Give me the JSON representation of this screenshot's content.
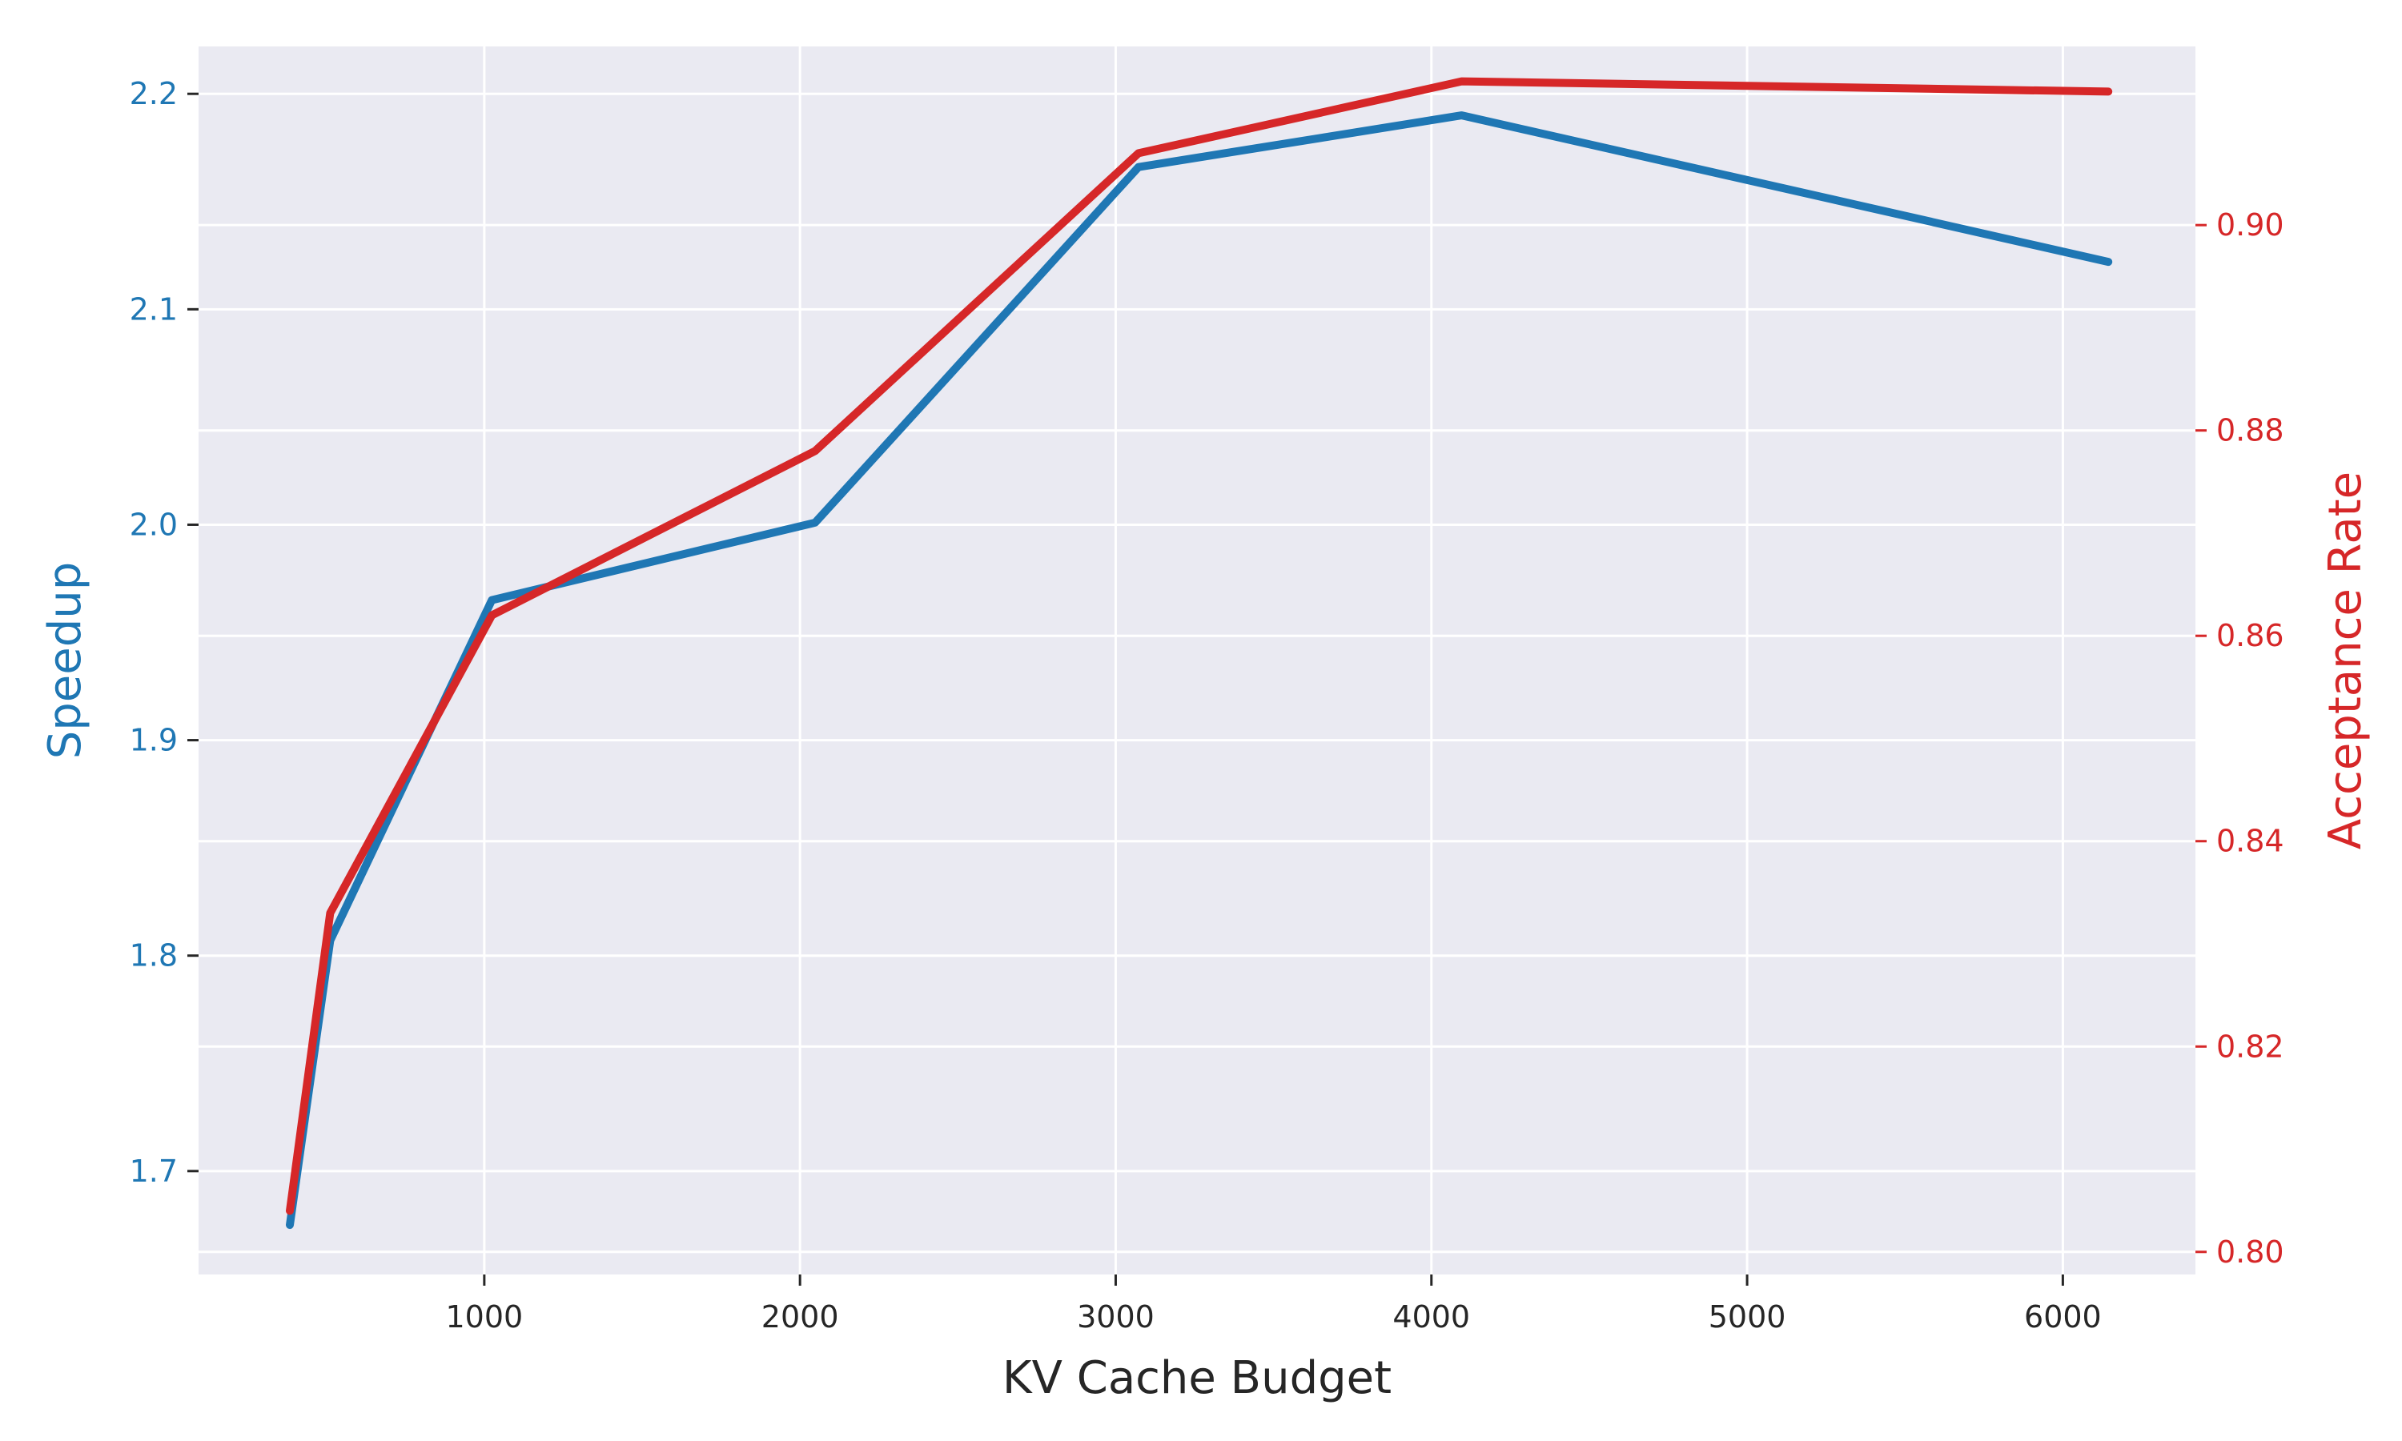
{
  "chart_data": {
    "type": "line",
    "xlabel": "KV Cache Budget",
    "ylabel_left": "Speedup",
    "ylabel_right": "Acceptance Rate",
    "grid": true,
    "xlim": [
      95,
      6420
    ],
    "ylim_left": [
      1.652,
      2.222
    ],
    "ylim_right": [
      0.7978,
      0.9174
    ],
    "x_ticks": [
      1000,
      2000,
      3000,
      4000,
      5000,
      6000
    ],
    "y_left_ticks": [
      1.7,
      1.8,
      1.9,
      2.0,
      2.1,
      2.2
    ],
    "y_right_ticks": [
      0.8,
      0.82,
      0.84,
      0.86,
      0.88,
      0.9
    ],
    "y_left_tick_labels": [
      "1.7",
      "1.8",
      "1.9",
      "2.0",
      "2.1",
      "2.2"
    ],
    "y_right_tick_labels": [
      "0.80",
      "0.82",
      "0.84",
      "0.86",
      "0.88",
      "0.90"
    ],
    "series": [
      {
        "axis": "left",
        "color": "#1f77b4",
        "x": [
          384,
          512,
          1024,
          2048,
          3072,
          4096,
          6144
        ],
        "values": [
          1.675,
          1.807,
          1.965,
          2.001,
          2.166,
          2.19,
          2.122
        ]
      },
      {
        "axis": "right",
        "color": "#d62728",
        "x": [
          384,
          512,
          1024,
          2048,
          3072,
          4096,
          6144
        ],
        "values": [
          0.804,
          0.833,
          0.862,
          0.878,
          0.907,
          0.914,
          0.913
        ]
      }
    ],
    "colors": {
      "plot_background": "#eaeaf2",
      "grid": "#ffffff",
      "left_axis": "#1f77b4",
      "right_axis": "#d62728",
      "x_axis_text": "#262626"
    }
  }
}
